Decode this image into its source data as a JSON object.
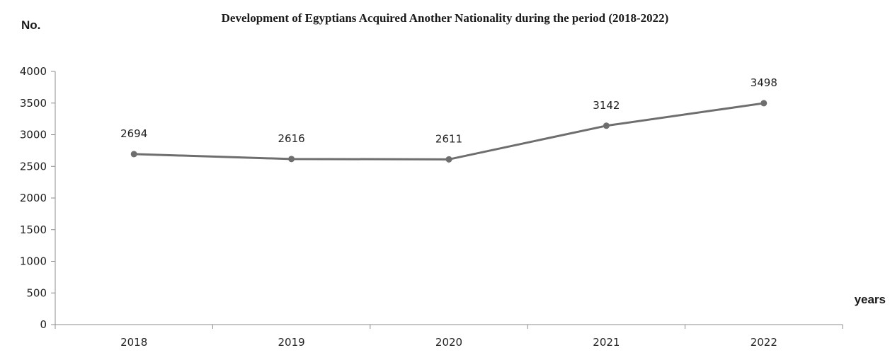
{
  "chart_data": {
    "type": "line",
    "title": "Development of Egyptians Acquired Another  Nationality during the period (2018-2022)",
    "ylabel": "No.",
    "xlabel": "years",
    "categories": [
      "2018",
      "2019",
      "2020",
      "2021",
      "2022"
    ],
    "series": [
      {
        "values": [
          2694,
          2616,
          2611,
          3142,
          3498
        ]
      }
    ],
    "ylim": [
      0,
      4000
    ],
    "yticks": [
      0,
      500,
      1000,
      1500,
      2000,
      2500,
      3000,
      3500,
      4000
    ],
    "data_labels": [
      "2694",
      "2616",
      "2611",
      "3142",
      "3498"
    ],
    "grid": false,
    "legend": "none",
    "colors": {
      "line": "#6e6e6e",
      "marker": "#6e6e6e",
      "axis": "#8c8c8c"
    }
  }
}
